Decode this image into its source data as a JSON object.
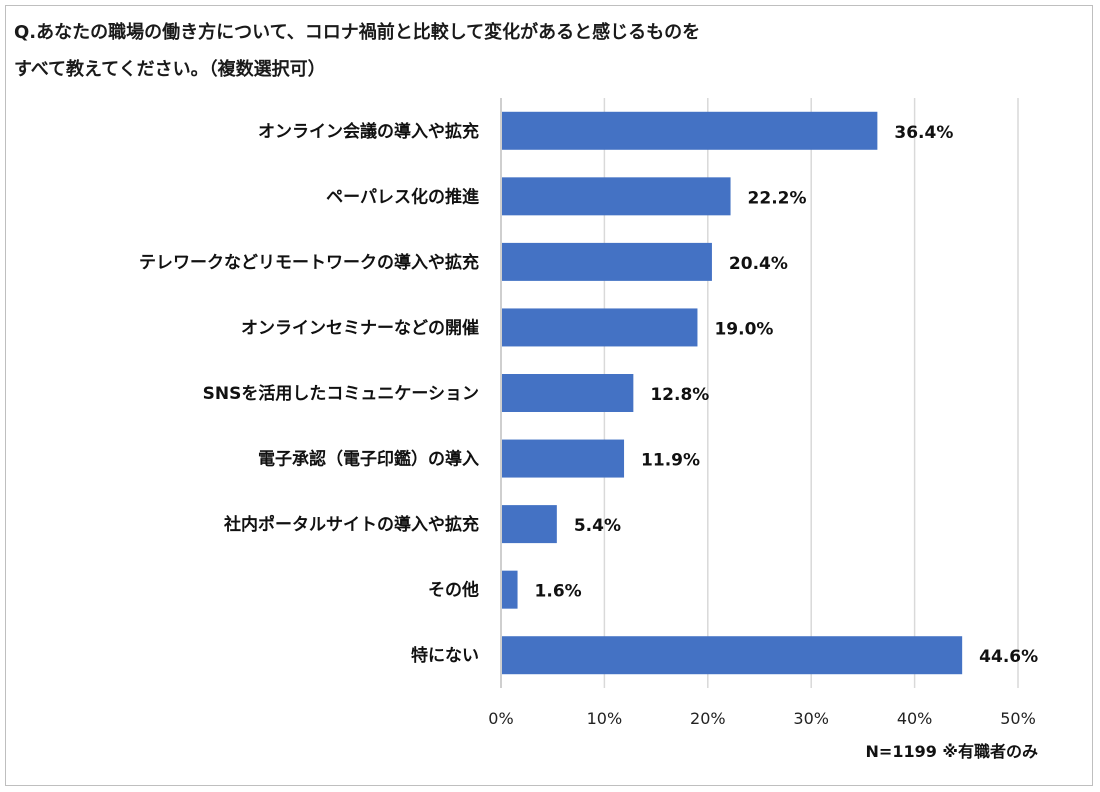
{
  "title": {
    "line1": "Q.あなたの職場の働き方について、コロナ禍前と比較して変化があると感じるものを",
    "line2": "すべて教えてください。（複数選択可）"
  },
  "footnote": "N=1199 ※有職者のみ",
  "chart_data": {
    "type": "bar",
    "orientation": "horizontal",
    "categories": [
      "オンライン会議の導入や拡充",
      "ペーパレス化の推進",
      "テレワークなどリモートワークの導入や拡充",
      "オンラインセミナーなどの開催",
      "SNSを活用したコミュニケーション",
      "電子承認（電子印鑑）の導入",
      "社内ポータルサイトの導入や拡充",
      "その他",
      "特にない"
    ],
    "values": [
      36.4,
      22.2,
      20.4,
      19.0,
      12.8,
      11.9,
      5.4,
      1.6,
      44.6
    ],
    "value_labels": [
      "36.4%",
      "22.2%",
      "20.4%",
      "19.0%",
      "12.8%",
      "11.9%",
      "5.4%",
      "1.6%",
      "44.6%"
    ],
    "xlim": [
      0,
      50
    ],
    "x_ticks": [
      0,
      10,
      20,
      30,
      40,
      50
    ],
    "x_tick_labels": [
      "0%",
      "10%",
      "20%",
      "30%",
      "40%",
      "50%"
    ],
    "grid": true,
    "bar_color": "#4472C4",
    "grid_color": "#d9d9d9"
  }
}
